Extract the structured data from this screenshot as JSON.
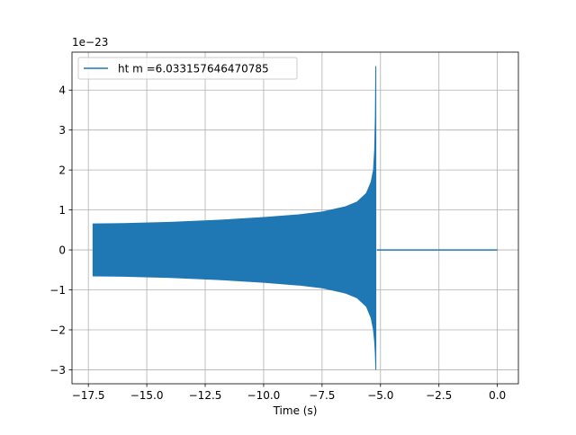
{
  "chart_data": {
    "type": "line",
    "title": "",
    "xlabel": "Time (s)",
    "ylabel": "",
    "y_offset_label": "1e−23",
    "xlim": [
      -18.2,
      0.9
    ],
    "ylim": [
      -3.35,
      4.95
    ],
    "x_ticks": [
      -17.5,
      -15.0,
      -12.5,
      -10.0,
      -7.5,
      -5.0,
      -2.5,
      0.0
    ],
    "x_tick_labels": [
      "−17.5",
      "−15.0",
      "−12.5",
      "−10.0",
      "−7.5",
      "−5.0",
      "−2.5",
      "0.0"
    ],
    "y_ticks": [
      -3,
      -2,
      -1,
      0,
      1,
      2,
      3,
      4
    ],
    "y_tick_labels": [
      "−3",
      "−2",
      "−1",
      "0",
      "1",
      "2",
      "3",
      "4"
    ],
    "grid": true,
    "legend_position": "top-left",
    "series": [
      {
        "name": "ht m =6.033157646470785",
        "color": "#1f77b4",
        "envelope_upper": {
          "x": [
            -17.3,
            -16.0,
            -14.0,
            -12.0,
            -10.0,
            -8.5,
            -7.5,
            -6.5,
            -6.0,
            -5.6,
            -5.4,
            -5.3,
            -5.25,
            -5.22,
            -5.2
          ],
          "y": [
            0.65,
            0.66,
            0.69,
            0.74,
            0.81,
            0.88,
            0.95,
            1.08,
            1.2,
            1.42,
            1.7,
            2.0,
            2.5,
            3.3,
            4.6
          ]
        },
        "envelope_lower": {
          "x": [
            -17.3,
            -16.0,
            -14.0,
            -12.0,
            -10.0,
            -8.5,
            -7.5,
            -6.5,
            -6.0,
            -5.6,
            -5.4,
            -5.3,
            -5.25,
            -5.22,
            -5.2
          ],
          "y": [
            -0.65,
            -0.66,
            -0.69,
            -0.74,
            -0.81,
            -0.88,
            -0.95,
            -1.08,
            -1.2,
            -1.42,
            -1.7,
            -2.0,
            -2.3,
            -2.6,
            -3.0
          ]
        },
        "flat_segment": {
          "x": [
            -5.15,
            0.0
          ],
          "y": [
            0.0,
            0.0
          ]
        }
      }
    ]
  }
}
